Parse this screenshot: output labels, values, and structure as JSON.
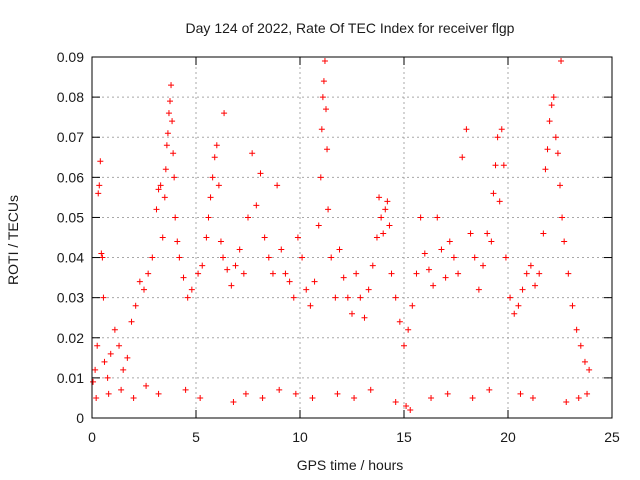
{
  "chart_data": {
    "type": "scatter",
    "title": "Day 124 of 2022, Rate Of TEC Index for receiver flgp",
    "xlabel": "GPS time / hours",
    "ylabel": "ROTI / TECUs",
    "xlim": [
      0,
      25
    ],
    "ylim": [
      0,
      0.09
    ],
    "xticks": [
      0,
      5,
      10,
      15,
      20,
      25
    ],
    "xtick_labels": [
      "0",
      "5",
      "10",
      "15",
      "20",
      "25"
    ],
    "yticks": [
      0,
      0.01,
      0.02,
      0.03,
      0.04,
      0.05,
      0.06,
      0.07,
      0.08,
      0.09
    ],
    "ytick_labels": [
      "0",
      "0.01",
      "0.02",
      "0.03",
      "0.04",
      "0.05",
      "0.06",
      "0.07",
      "0.08",
      "0.09"
    ],
    "grid": true,
    "marker": "+",
    "color": "#ff0000",
    "series": [
      {
        "name": "ROTI",
        "points": [
          [
            0.05,
            0.009
          ],
          [
            0.15,
            0.012
          ],
          [
            0.25,
            0.018
          ],
          [
            0.3,
            0.056
          ],
          [
            0.35,
            0.058
          ],
          [
            0.4,
            0.064
          ],
          [
            0.45,
            0.041
          ],
          [
            0.5,
            0.04
          ],
          [
            0.55,
            0.03
          ],
          [
            0.6,
            0.014
          ],
          [
            0.75,
            0.01
          ],
          [
            0.9,
            0.016
          ],
          [
            1.1,
            0.022
          ],
          [
            1.3,
            0.018
          ],
          [
            1.5,
            0.012
          ],
          [
            1.7,
            0.015
          ],
          [
            1.9,
            0.024
          ],
          [
            2.1,
            0.028
          ],
          [
            2.3,
            0.034
          ],
          [
            2.5,
            0.032
          ],
          [
            2.7,
            0.036
          ],
          [
            2.9,
            0.04
          ],
          [
            3.1,
            0.052
          ],
          [
            3.2,
            0.057
          ],
          [
            3.3,
            0.058
          ],
          [
            3.4,
            0.045
          ],
          [
            3.5,
            0.055
          ],
          [
            3.55,
            0.062
          ],
          [
            3.6,
            0.068
          ],
          [
            3.65,
            0.071
          ],
          [
            3.7,
            0.076
          ],
          [
            3.75,
            0.079
          ],
          [
            3.8,
            0.083
          ],
          [
            3.85,
            0.074
          ],
          [
            3.9,
            0.066
          ],
          [
            3.95,
            0.06
          ],
          [
            4.0,
            0.05
          ],
          [
            4.1,
            0.044
          ],
          [
            4.2,
            0.04
          ],
          [
            4.4,
            0.035
          ],
          [
            4.6,
            0.03
          ],
          [
            4.8,
            0.032
          ],
          [
            5.1,
            0.036
          ],
          [
            5.3,
            0.038
          ],
          [
            5.5,
            0.045
          ],
          [
            5.6,
            0.05
          ],
          [
            5.7,
            0.055
          ],
          [
            5.8,
            0.06
          ],
          [
            5.9,
            0.065
          ],
          [
            6.0,
            0.068
          ],
          [
            6.1,
            0.058
          ],
          [
            6.2,
            0.044
          ],
          [
            6.3,
            0.04
          ],
          [
            6.35,
            0.076
          ],
          [
            6.5,
            0.037
          ],
          [
            6.7,
            0.033
          ],
          [
            6.9,
            0.038
          ],
          [
            7.1,
            0.042
          ],
          [
            7.3,
            0.036
          ],
          [
            7.5,
            0.05
          ],
          [
            7.7,
            0.066
          ],
          [
            7.9,
            0.053
          ],
          [
            8.1,
            0.061
          ],
          [
            8.3,
            0.045
          ],
          [
            8.5,
            0.04
          ],
          [
            8.7,
            0.036
          ],
          [
            8.9,
            0.058
          ],
          [
            9.1,
            0.042
          ],
          [
            9.3,
            0.036
          ],
          [
            9.5,
            0.034
          ],
          [
            9.7,
            0.03
          ],
          [
            9.9,
            0.045
          ],
          [
            10.1,
            0.04
          ],
          [
            10.3,
            0.032
          ],
          [
            10.5,
            0.028
          ],
          [
            10.7,
            0.034
          ],
          [
            10.9,
            0.048
          ],
          [
            11.0,
            0.06
          ],
          [
            11.05,
            0.072
          ],
          [
            11.1,
            0.08
          ],
          [
            11.15,
            0.084
          ],
          [
            11.2,
            0.089
          ],
          [
            11.25,
            0.077
          ],
          [
            11.3,
            0.067
          ],
          [
            11.35,
            0.052
          ],
          [
            11.5,
            0.04
          ],
          [
            11.7,
            0.03
          ],
          [
            11.9,
            0.042
          ],
          [
            12.1,
            0.035
          ],
          [
            12.3,
            0.03
          ],
          [
            12.5,
            0.026
          ],
          [
            12.7,
            0.036
          ],
          [
            12.9,
            0.03
          ],
          [
            13.1,
            0.025
          ],
          [
            13.3,
            0.032
          ],
          [
            13.5,
            0.038
          ],
          [
            13.7,
            0.045
          ],
          [
            13.8,
            0.055
          ],
          [
            13.9,
            0.05
          ],
          [
            14.0,
            0.046
          ],
          [
            14.1,
            0.052
          ],
          [
            14.2,
            0.054
          ],
          [
            14.3,
            0.048
          ],
          [
            14.4,
            0.036
          ],
          [
            14.6,
            0.03
          ],
          [
            14.8,
            0.024
          ],
          [
            15.0,
            0.018
          ],
          [
            15.2,
            0.022
          ],
          [
            15.4,
            0.028
          ],
          [
            15.6,
            0.036
          ],
          [
            15.8,
            0.05
          ],
          [
            16.0,
            0.041
          ],
          [
            16.2,
            0.037
          ],
          [
            16.4,
            0.033
          ],
          [
            16.6,
            0.05
          ],
          [
            16.8,
            0.042
          ],
          [
            17.0,
            0.035
          ],
          [
            17.2,
            0.044
          ],
          [
            17.4,
            0.04
          ],
          [
            17.6,
            0.036
          ],
          [
            17.8,
            0.065
          ],
          [
            18.0,
            0.072
          ],
          [
            18.2,
            0.046
          ],
          [
            18.4,
            0.04
          ],
          [
            18.6,
            0.032
          ],
          [
            18.8,
            0.038
          ],
          [
            19.0,
            0.046
          ],
          [
            19.2,
            0.044
          ],
          [
            19.3,
            0.056
          ],
          [
            19.4,
            0.063
          ],
          [
            19.5,
            0.07
          ],
          [
            19.6,
            0.054
          ],
          [
            19.7,
            0.072
          ],
          [
            19.8,
            0.063
          ],
          [
            19.9,
            0.04
          ],
          [
            20.1,
            0.03
          ],
          [
            20.3,
            0.026
          ],
          [
            20.5,
            0.028
          ],
          [
            20.7,
            0.032
          ],
          [
            20.9,
            0.036
          ],
          [
            21.1,
            0.038
          ],
          [
            21.3,
            0.033
          ],
          [
            21.5,
            0.036
          ],
          [
            21.7,
            0.046
          ],
          [
            21.8,
            0.062
          ],
          [
            21.9,
            0.067
          ],
          [
            22.0,
            0.074
          ],
          [
            22.1,
            0.078
          ],
          [
            22.2,
            0.08
          ],
          [
            22.3,
            0.07
          ],
          [
            22.4,
            0.066
          ],
          [
            22.5,
            0.058
          ],
          [
            22.55,
            0.089
          ],
          [
            22.6,
            0.05
          ],
          [
            22.7,
            0.044
          ],
          [
            22.9,
            0.036
          ],
          [
            23.1,
            0.028
          ],
          [
            23.3,
            0.022
          ],
          [
            23.5,
            0.018
          ],
          [
            23.7,
            0.014
          ],
          [
            23.9,
            0.012
          ],
          [
            0.2,
            0.005
          ],
          [
            0.8,
            0.006
          ],
          [
            1.4,
            0.007
          ],
          [
            2.0,
            0.005
          ],
          [
            2.6,
            0.008
          ],
          [
            3.2,
            0.006
          ],
          [
            4.5,
            0.007
          ],
          [
            5.2,
            0.005
          ],
          [
            6.8,
            0.004
          ],
          [
            7.4,
            0.006
          ],
          [
            8.2,
            0.005
          ],
          [
            9.0,
            0.007
          ],
          [
            9.8,
            0.006
          ],
          [
            10.6,
            0.005
          ],
          [
            11.8,
            0.006
          ],
          [
            12.6,
            0.005
          ],
          [
            13.4,
            0.007
          ],
          [
            14.6,
            0.004
          ],
          [
            15.1,
            0.003
          ],
          [
            15.3,
            0.002
          ],
          [
            16.3,
            0.005
          ],
          [
            17.1,
            0.006
          ],
          [
            18.3,
            0.005
          ],
          [
            19.1,
            0.007
          ],
          [
            20.6,
            0.006
          ],
          [
            21.2,
            0.005
          ],
          [
            22.8,
            0.004
          ],
          [
            23.4,
            0.005
          ],
          [
            23.8,
            0.006
          ]
        ]
      }
    ]
  }
}
